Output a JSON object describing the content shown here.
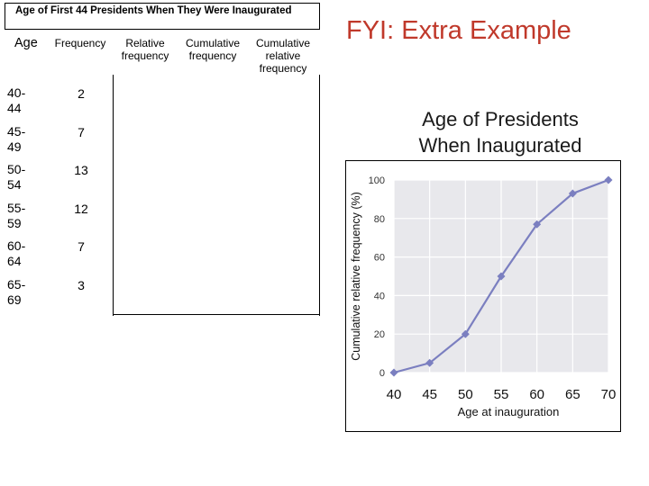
{
  "table": {
    "title": "Age of First 44 Presidents When They Were Inaugurated",
    "headers": {
      "age": "Age",
      "frequency": "Frequency",
      "relative": [
        "Relative",
        "frequency"
      ],
      "cumulative": [
        "Cumulative",
        "frequency"
      ],
      "cumulative_relative": [
        "Cumulative",
        "relative",
        "frequency"
      ]
    },
    "rows": [
      {
        "age": [
          "40-",
          "44"
        ],
        "frequency": "2"
      },
      {
        "age": [
          "45-",
          "49"
        ],
        "frequency": "7"
      },
      {
        "age": [
          "50-",
          "54"
        ],
        "frequency": "13"
      },
      {
        "age": [
          "55-",
          "59"
        ],
        "frequency": "12"
      },
      {
        "age": [
          "60-",
          "64"
        ],
        "frequency": "7"
      },
      {
        "age": [
          "65-",
          "69"
        ],
        "frequency": "3"
      }
    ]
  },
  "fyi_label": "FYI: Extra Example",
  "colors": {
    "fyi": "#c0392b",
    "series": "#7b7fc0",
    "plot_bg": "#e8e8ec"
  },
  "chart_data": {
    "type": "line",
    "title": [
      "Age of Presidents",
      "When Inaugurated"
    ],
    "xlabel": "Age at inauguration",
    "ylabel": "Cumulative relative frequency (%)",
    "x": [
      40,
      45,
      50,
      55,
      60,
      65,
      70
    ],
    "y": [
      0,
      5,
      20,
      50,
      77,
      93,
      100
    ],
    "xticks": [
      "40",
      "45",
      "50",
      "55",
      "60",
      "65",
      "70"
    ],
    "yticks": [
      "0",
      "20",
      "40",
      "60",
      "80",
      "100"
    ],
    "xlim": [
      40,
      70
    ],
    "ylim": [
      0,
      100
    ],
    "grid": true
  }
}
